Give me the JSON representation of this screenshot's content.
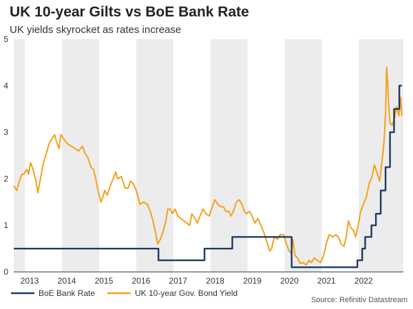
{
  "chart_data": {
    "type": "line",
    "title": "UK 10-year Gilts vs BoE Bank Rate",
    "subtitle": "UK yields skyrocket as rates increase",
    "source": "Source: Refinitiv Datastream",
    "x_ticks": [
      "2013",
      "2014",
      "2015",
      "2016",
      "2017",
      "2018",
      "2019",
      "2020",
      "2021",
      "2022"
    ],
    "xlim": [
      2012.7,
      2022.9
    ],
    "ylim": [
      0,
      5
    ],
    "y_ticks": [
      "0",
      "1",
      "2",
      "3",
      "4",
      "5"
    ],
    "grid": "alternating year bands",
    "legend_position": "bottom-left",
    "series": [
      {
        "name": "BoE Bank Rate",
        "color": "#1b3a63",
        "step": true,
        "points": [
          [
            2012.7,
            0.5
          ],
          [
            2016.6,
            0.5
          ],
          [
            2016.6,
            0.25
          ],
          [
            2017.84,
            0.25
          ],
          [
            2017.84,
            0.5
          ],
          [
            2018.59,
            0.5
          ],
          [
            2018.59,
            0.75
          ],
          [
            2020.19,
            0.75
          ],
          [
            2020.19,
            0.1
          ],
          [
            2021.96,
            0.1
          ],
          [
            2021.96,
            0.25
          ],
          [
            2022.09,
            0.25
          ],
          [
            2022.09,
            0.5
          ],
          [
            2022.17,
            0.5
          ],
          [
            2022.17,
            0.75
          ],
          [
            2022.34,
            0.75
          ],
          [
            2022.34,
            1.0
          ],
          [
            2022.46,
            1.0
          ],
          [
            2022.46,
            1.25
          ],
          [
            2022.59,
            1.25
          ],
          [
            2022.59,
            1.75
          ],
          [
            2022.72,
            1.75
          ],
          [
            2022.72,
            2.25
          ],
          [
            2022.84,
            2.25
          ],
          [
            2022.84,
            3.0
          ],
          [
            2022.95,
            3.0
          ],
          [
            2022.95,
            3.5
          ],
          [
            2023.09,
            3.5
          ],
          [
            2023.09,
            4.0
          ],
          [
            2023.16,
            4.0
          ]
        ]
      },
      {
        "name": "UK 10-year Gov. Bond Yield",
        "color": "#f5a01a",
        "step": false,
        "points": [
          [
            2012.7,
            1.85
          ],
          [
            2012.78,
            1.75
          ],
          [
            2012.85,
            1.95
          ],
          [
            2012.92,
            2.1
          ],
          [
            2012.97,
            2.1
          ],
          [
            2013.05,
            2.2
          ],
          [
            2013.1,
            2.1
          ],
          [
            2013.15,
            2.35
          ],
          [
            2013.22,
            2.2
          ],
          [
            2013.3,
            1.95
          ],
          [
            2013.35,
            1.7
          ],
          [
            2013.42,
            2.0
          ],
          [
            2013.5,
            2.35
          ],
          [
            2013.58,
            2.55
          ],
          [
            2013.65,
            2.75
          ],
          [
            2013.72,
            2.85
          ],
          [
            2013.8,
            2.95
          ],
          [
            2013.85,
            2.8
          ],
          [
            2013.92,
            2.65
          ],
          [
            2013.97,
            2.95
          ],
          [
            2014.05,
            2.85
          ],
          [
            2014.15,
            2.75
          ],
          [
            2014.25,
            2.7
          ],
          [
            2014.35,
            2.65
          ],
          [
            2014.45,
            2.6
          ],
          [
            2014.55,
            2.7
          ],
          [
            2014.62,
            2.55
          ],
          [
            2014.7,
            2.45
          ],
          [
            2014.78,
            2.25
          ],
          [
            2014.85,
            2.2
          ],
          [
            2014.92,
            1.95
          ],
          [
            2014.97,
            1.75
          ],
          [
            2015.05,
            1.5
          ],
          [
            2015.1,
            1.6
          ],
          [
            2015.15,
            1.75
          ],
          [
            2015.22,
            1.65
          ],
          [
            2015.3,
            1.85
          ],
          [
            2015.38,
            2.0
          ],
          [
            2015.45,
            2.15
          ],
          [
            2015.5,
            2.0
          ],
          [
            2015.6,
            2.05
          ],
          [
            2015.7,
            1.8
          ],
          [
            2015.78,
            1.8
          ],
          [
            2015.85,
            1.95
          ],
          [
            2015.92,
            1.9
          ],
          [
            2016.0,
            1.75
          ],
          [
            2016.05,
            1.6
          ],
          [
            2016.1,
            1.45
          ],
          [
            2016.2,
            1.5
          ],
          [
            2016.3,
            1.45
          ],
          [
            2016.38,
            1.3
          ],
          [
            2016.45,
            1.1
          ],
          [
            2016.52,
            0.85
          ],
          [
            2016.58,
            0.6
          ],
          [
            2016.65,
            0.7
          ],
          [
            2016.72,
            0.85
          ],
          [
            2016.8,
            1.1
          ],
          [
            2016.85,
            1.35
          ],
          [
            2016.92,
            1.35
          ],
          [
            2016.97,
            1.25
          ],
          [
            2017.05,
            1.35
          ],
          [
            2017.12,
            1.2
          ],
          [
            2017.2,
            1.15
          ],
          [
            2017.28,
            1.1
          ],
          [
            2017.36,
            1.05
          ],
          [
            2017.44,
            1.0
          ],
          [
            2017.5,
            1.25
          ],
          [
            2017.58,
            1.15
          ],
          [
            2017.65,
            1.05
          ],
          [
            2017.72,
            1.2
          ],
          [
            2017.8,
            1.35
          ],
          [
            2017.88,
            1.25
          ],
          [
            2017.97,
            1.2
          ],
          [
            2018.05,
            1.4
          ],
          [
            2018.12,
            1.55
          ],
          [
            2018.2,
            1.45
          ],
          [
            2018.28,
            1.4
          ],
          [
            2018.35,
            1.4
          ],
          [
            2018.42,
            1.3
          ],
          [
            2018.5,
            1.3
          ],
          [
            2018.55,
            1.2
          ],
          [
            2018.62,
            1.3
          ],
          [
            2018.7,
            1.5
          ],
          [
            2018.78,
            1.55
          ],
          [
            2018.85,
            1.45
          ],
          [
            2018.92,
            1.3
          ],
          [
            2018.97,
            1.25
          ],
          [
            2019.05,
            1.3
          ],
          [
            2019.12,
            1.2
          ],
          [
            2019.2,
            1.05
          ],
          [
            2019.28,
            1.15
          ],
          [
            2019.36,
            1.0
          ],
          [
            2019.44,
            0.85
          ],
          [
            2019.52,
            0.65
          ],
          [
            2019.6,
            0.45
          ],
          [
            2019.65,
            0.5
          ],
          [
            2019.72,
            0.75
          ],
          [
            2019.8,
            0.7
          ],
          [
            2019.88,
            0.8
          ],
          [
            2019.97,
            0.8
          ],
          [
            2020.05,
            0.6
          ],
          [
            2020.12,
            0.45
          ],
          [
            2020.18,
            0.4
          ],
          [
            2020.22,
            0.7
          ],
          [
            2020.28,
            0.35
          ],
          [
            2020.35,
            0.3
          ],
          [
            2020.42,
            0.18
          ],
          [
            2020.5,
            0.2
          ],
          [
            2020.58,
            0.15
          ],
          [
            2020.66,
            0.25
          ],
          [
            2020.72,
            0.2
          ],
          [
            2020.8,
            0.3
          ],
          [
            2020.88,
            0.25
          ],
          [
            2020.97,
            0.2
          ],
          [
            2021.05,
            0.35
          ],
          [
            2021.12,
            0.6
          ],
          [
            2021.2,
            0.8
          ],
          [
            2021.3,
            0.75
          ],
          [
            2021.38,
            0.8
          ],
          [
            2021.45,
            0.75
          ],
          [
            2021.52,
            0.6
          ],
          [
            2021.6,
            0.55
          ],
          [
            2021.66,
            0.75
          ],
          [
            2021.72,
            1.1
          ],
          [
            2021.78,
            0.95
          ],
          [
            2021.85,
            0.9
          ],
          [
            2021.92,
            0.75
          ],
          [
            2021.97,
            0.95
          ],
          [
            2022.05,
            1.3
          ],
          [
            2022.12,
            1.45
          ],
          [
            2022.2,
            1.6
          ],
          [
            2022.28,
            1.9
          ],
          [
            2022.36,
            2.05
          ],
          [
            2022.42,
            2.3
          ],
          [
            2022.48,
            2.15
          ],
          [
            2022.56,
            1.95
          ],
          [
            2022.62,
            2.35
          ],
          [
            2022.68,
            2.8
          ],
          [
            2022.72,
            3.4
          ],
          [
            2022.75,
            4.4
          ],
          [
            2022.78,
            4.0
          ],
          [
            2022.8,
            3.65
          ],
          [
            2022.84,
            3.2
          ],
          [
            2022.9,
            3.15
          ],
          [
            2022.96,
            3.3
          ],
          [
            2023.02,
            3.55
          ],
          [
            2023.08,
            3.35
          ],
          [
            2023.13,
            3.75
          ],
          [
            2023.16,
            3.35
          ]
        ]
      }
    ]
  }
}
